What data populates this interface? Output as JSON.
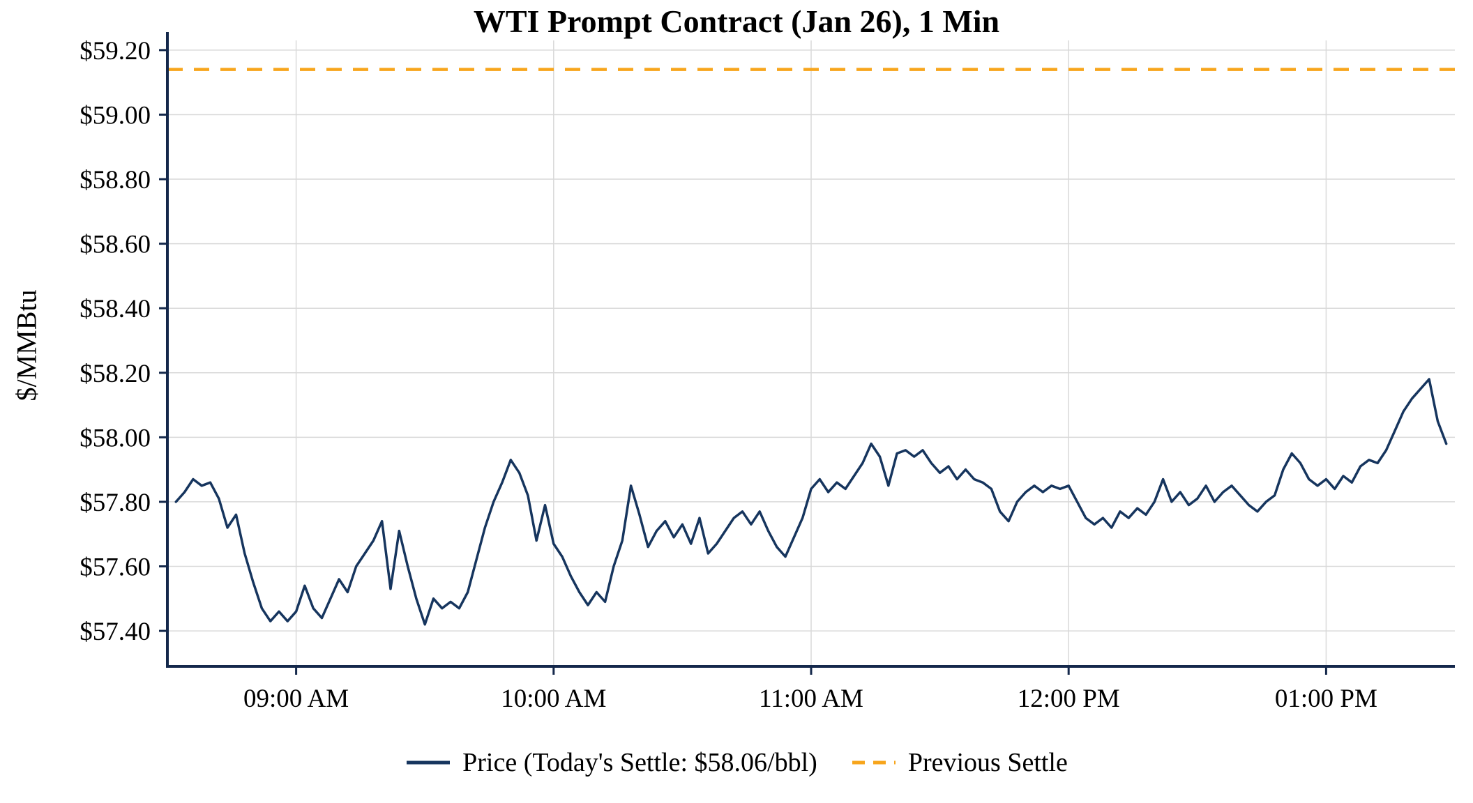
{
  "colors": {
    "grid": "#d9d9d9",
    "axis": "#14284b",
    "text": "#000000",
    "background": "#ffffff"
  },
  "chart_data": {
    "type": "line",
    "title": "WTI Prompt Contract (Jan 26), 1 Min",
    "xlabel": "",
    "ylabel": "$/MMBtu",
    "grid": true,
    "legend_position": "bottom",
    "today_settle": 58.06,
    "ylim": [
      57.29,
      59.23
    ],
    "x_domain": [
      "08:30",
      "13:30"
    ],
    "x_ticks": [
      {
        "label": "09:00 AM",
        "value": "09:00"
      },
      {
        "label": "10:00 AM",
        "value": "10:00"
      },
      {
        "label": "11:00 AM",
        "value": "11:00"
      },
      {
        "label": "12:00 PM",
        "value": "12:00"
      },
      {
        "label": "01:00 PM",
        "value": "13:00"
      }
    ],
    "y_ticks": [
      {
        "label": "$59.20",
        "value": 59.2
      },
      {
        "label": "$59.00",
        "value": 59.0
      },
      {
        "label": "$58.80",
        "value": 58.8
      },
      {
        "label": "$58.60",
        "value": 58.6
      },
      {
        "label": "$58.40",
        "value": 58.4
      },
      {
        "label": "$58.20",
        "value": 58.2
      },
      {
        "label": "$58.00",
        "value": 58.0
      },
      {
        "label": "$57.80",
        "value": 57.8
      },
      {
        "label": "$57.60",
        "value": 57.6
      },
      {
        "label": "$57.40",
        "value": 57.4
      }
    ],
    "previous_settle": {
      "label": "Previous Settle",
      "value": 59.14,
      "color": "#f7a51c",
      "style": "dashed"
    },
    "x": [
      "08:32",
      "08:34",
      "08:36",
      "08:38",
      "08:40",
      "08:42",
      "08:44",
      "08:46",
      "08:48",
      "08:50",
      "08:52",
      "08:54",
      "08:56",
      "08:58",
      "09:00",
      "09:02",
      "09:04",
      "09:06",
      "09:08",
      "09:10",
      "09:12",
      "09:14",
      "09:16",
      "09:18",
      "09:20",
      "09:22",
      "09:24",
      "09:26",
      "09:28",
      "09:30",
      "09:32",
      "09:34",
      "09:36",
      "09:38",
      "09:40",
      "09:42",
      "09:44",
      "09:46",
      "09:48",
      "09:50",
      "09:52",
      "09:54",
      "09:56",
      "09:58",
      "10:00",
      "10:02",
      "10:04",
      "10:06",
      "10:08",
      "10:10",
      "10:12",
      "10:14",
      "10:16",
      "10:18",
      "10:20",
      "10:22",
      "10:24",
      "10:26",
      "10:28",
      "10:30",
      "10:32",
      "10:34",
      "10:36",
      "10:38",
      "10:40",
      "10:42",
      "10:44",
      "10:46",
      "10:48",
      "10:50",
      "10:52",
      "10:54",
      "10:56",
      "10:58",
      "11:00",
      "11:02",
      "11:04",
      "11:06",
      "11:08",
      "11:10",
      "11:12",
      "11:14",
      "11:16",
      "11:18",
      "11:20",
      "11:22",
      "11:24",
      "11:26",
      "11:28",
      "11:30",
      "11:32",
      "11:34",
      "11:36",
      "11:38",
      "11:40",
      "11:42",
      "11:44",
      "11:46",
      "11:48",
      "11:50",
      "11:52",
      "11:54",
      "11:56",
      "11:58",
      "12:00",
      "12:02",
      "12:04",
      "12:06",
      "12:08",
      "12:10",
      "12:12",
      "12:14",
      "12:16",
      "12:18",
      "12:20",
      "12:22",
      "12:24",
      "12:26",
      "12:28",
      "12:30",
      "12:32",
      "12:34",
      "12:36",
      "12:38",
      "12:40",
      "12:42",
      "12:44",
      "12:46",
      "12:48",
      "12:50",
      "12:52",
      "12:54",
      "12:56",
      "12:58",
      "13:00",
      "13:02",
      "13:04",
      "13:06",
      "13:08",
      "13:10",
      "13:12",
      "13:14",
      "13:16",
      "13:18",
      "13:20",
      "13:22",
      "13:24",
      "13:26",
      "13:28"
    ],
    "series": [
      {
        "name": "Price (Today's Settle: $58.06/bbl)",
        "color": "#16355e",
        "style": "solid",
        "values": [
          57.8,
          57.83,
          57.87,
          57.85,
          57.86,
          57.81,
          57.72,
          57.76,
          57.64,
          57.55,
          57.47,
          57.43,
          57.46,
          57.43,
          57.46,
          57.54,
          57.47,
          57.44,
          57.5,
          57.56,
          57.52,
          57.6,
          57.64,
          57.68,
          57.74,
          57.53,
          57.71,
          57.6,
          57.5,
          57.42,
          57.5,
          57.47,
          57.49,
          57.47,
          57.52,
          57.62,
          57.72,
          57.8,
          57.86,
          57.93,
          57.89,
          57.82,
          57.68,
          57.79,
          57.67,
          57.63,
          57.57,
          57.52,
          57.48,
          57.52,
          57.49,
          57.6,
          57.68,
          57.85,
          57.76,
          57.66,
          57.71,
          57.74,
          57.69,
          57.73,
          57.67,
          57.75,
          57.64,
          57.67,
          57.71,
          57.75,
          57.77,
          57.73,
          57.77,
          57.71,
          57.66,
          57.63,
          57.69,
          57.75,
          57.84,
          57.87,
          57.83,
          57.86,
          57.84,
          57.88,
          57.92,
          57.98,
          57.94,
          57.85,
          57.95,
          57.96,
          57.94,
          57.96,
          57.92,
          57.89,
          57.91,
          57.87,
          57.9,
          57.87,
          57.86,
          57.84,
          57.77,
          57.74,
          57.8,
          57.83,
          57.85,
          57.83,
          57.85,
          57.84,
          57.85,
          57.8,
          57.75,
          57.73,
          57.75,
          57.72,
          57.77,
          57.75,
          57.78,
          57.76,
          57.8,
          57.87,
          57.8,
          57.83,
          57.79,
          57.81,
          57.85,
          57.8,
          57.83,
          57.85,
          57.82,
          57.79,
          57.77,
          57.8,
          57.82,
          57.9,
          57.95,
          57.92,
          57.87,
          57.85,
          57.87,
          57.84,
          57.88,
          57.86,
          57.91,
          57.93,
          57.92,
          57.96,
          58.02,
          58.08,
          58.12,
          58.15,
          58.18,
          58.05,
          57.98
        ]
      }
    ]
  }
}
